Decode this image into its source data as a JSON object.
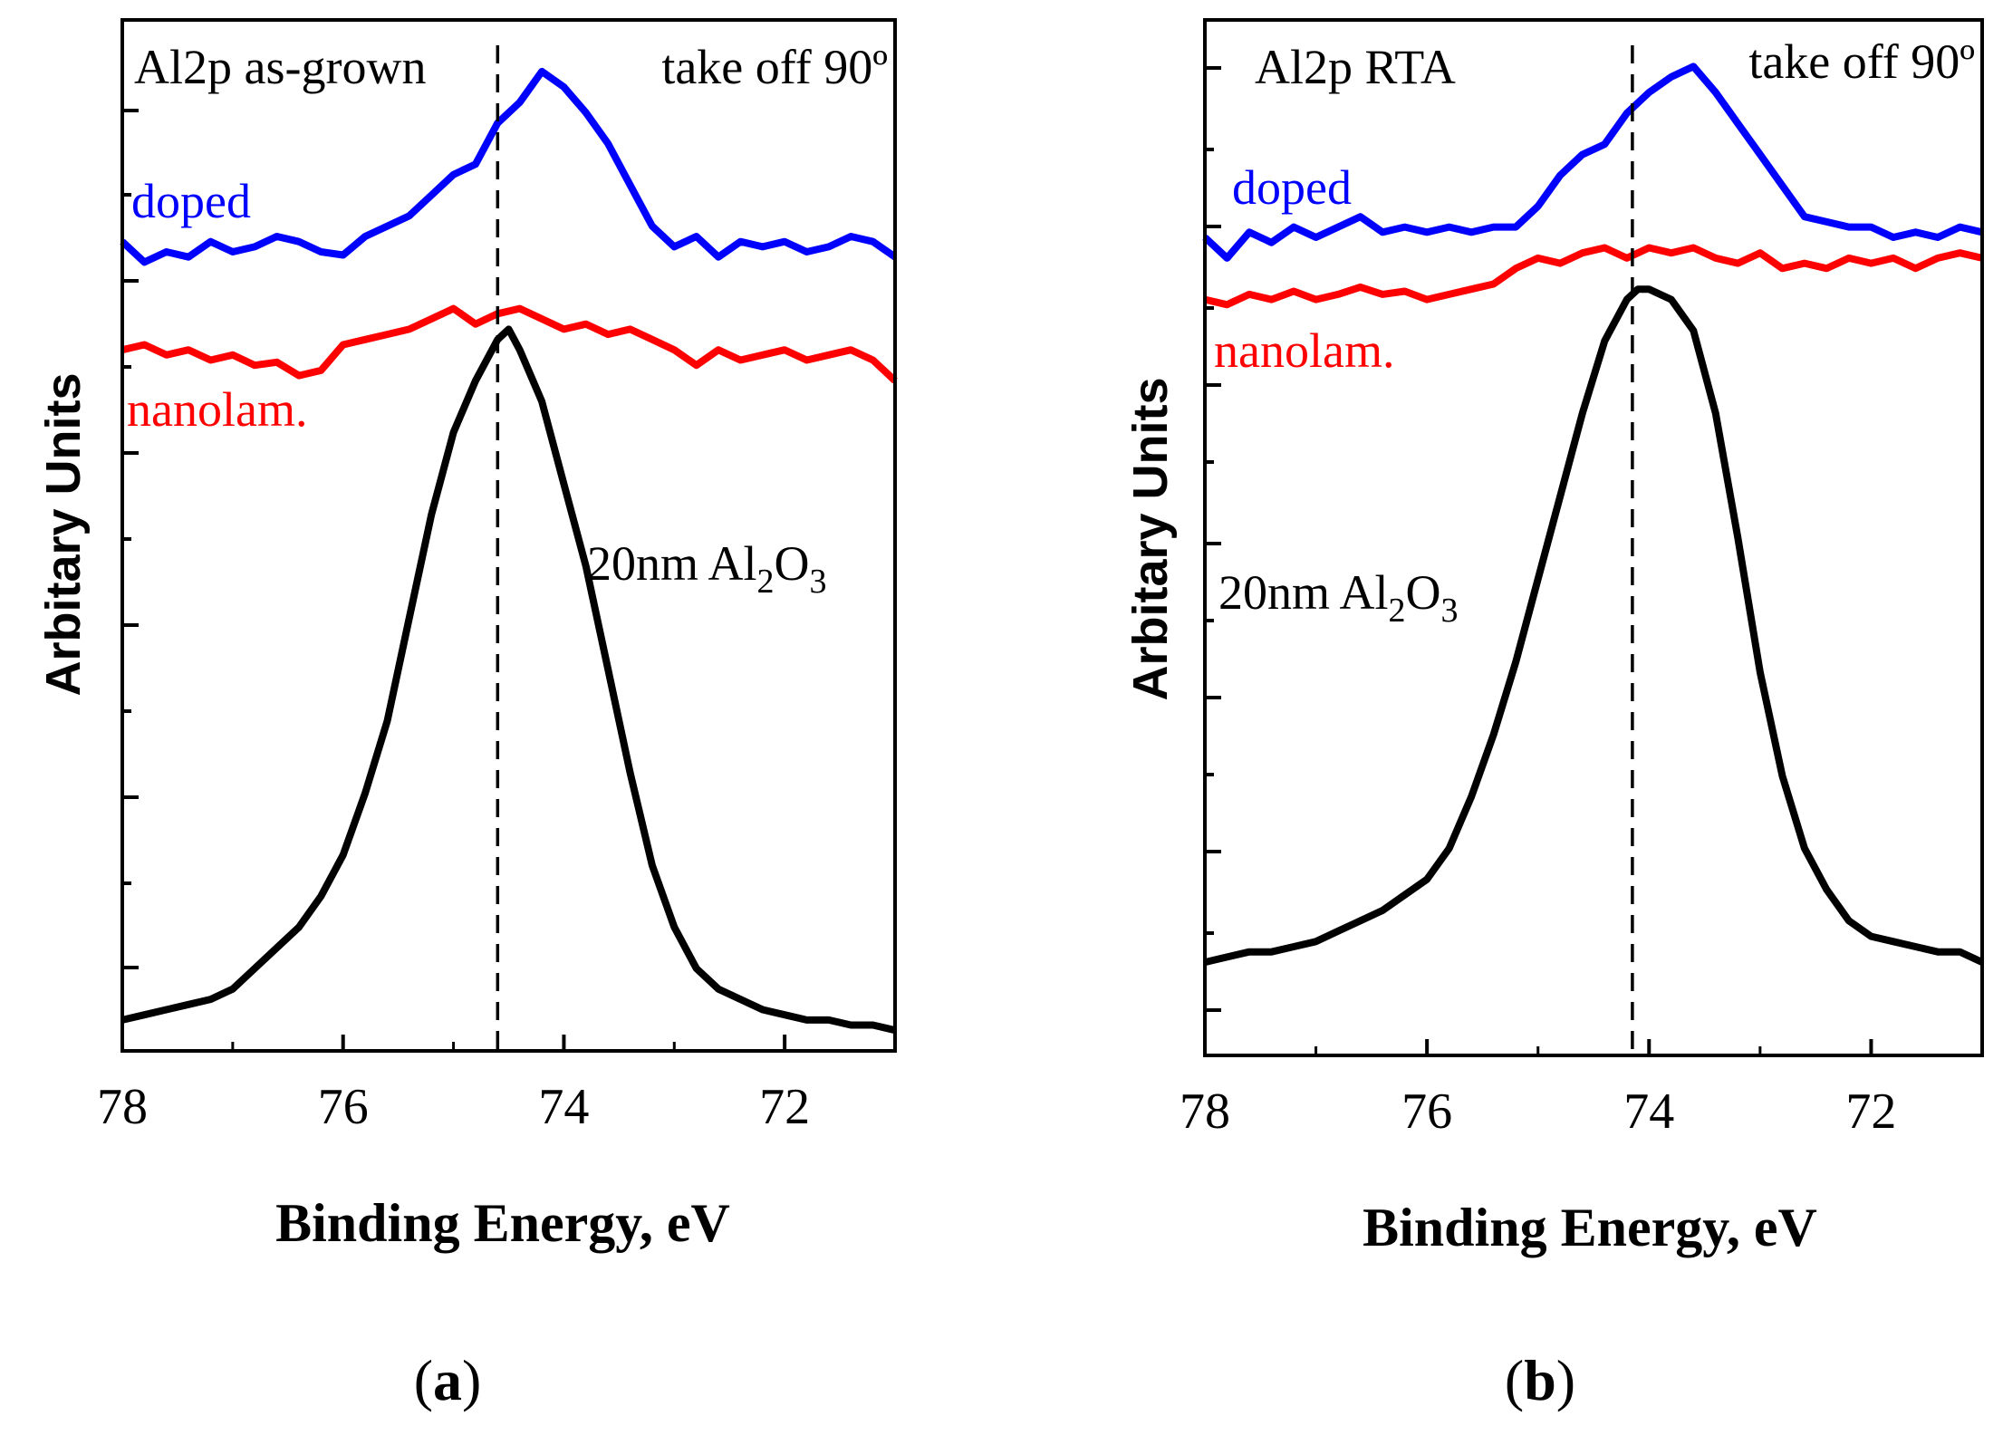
{
  "chart_data": [
    {
      "type": "line",
      "panel_label": {
        "open": "(",
        "letter": "a",
        "close": ")"
      },
      "xlabel": "Binding Energy, eV",
      "ylabel": "Arbitary Units",
      "xlim": [
        78,
        71
      ],
      "x_reversed": true,
      "xticks": [
        "78",
        "76",
        "74",
        "72"
      ],
      "ylim": [
        0,
        1
      ],
      "y_tick_labels": false,
      "reference_line_x": 74.6,
      "annotations": {
        "top_left": "Al2p as-grown",
        "top_right": "take off 90º",
        "doped_label": "doped",
        "nanolam_label": "nanolam.",
        "oxide_label": {
          "prefix": "20nm Al",
          "sub1": "2",
          "mid": "O",
          "sub2": "3"
        }
      },
      "series": [
        {
          "name": "doped",
          "color": "#0000ff",
          "x": [
            78.0,
            77.8,
            77.6,
            77.4,
            77.2,
            77.0,
            76.8,
            76.6,
            76.4,
            76.2,
            76.0,
            75.8,
            75.6,
            75.4,
            75.2,
            75.0,
            74.8,
            74.6,
            74.4,
            74.2,
            74.0,
            73.8,
            73.6,
            73.4,
            73.2,
            73.0,
            72.8,
            72.6,
            72.4,
            72.2,
            72.0,
            71.8,
            71.6,
            71.4,
            71.2,
            71.0
          ],
          "y": [
            0.785,
            0.765,
            0.775,
            0.77,
            0.785,
            0.775,
            0.78,
            0.79,
            0.785,
            0.775,
            0.772,
            0.79,
            0.8,
            0.81,
            0.83,
            0.85,
            0.86,
            0.9,
            0.92,
            0.95,
            0.935,
            0.91,
            0.88,
            0.84,
            0.8,
            0.78,
            0.79,
            0.77,
            0.785,
            0.78,
            0.785,
            0.775,
            0.78,
            0.79,
            0.785,
            0.77
          ]
        },
        {
          "name": "nanolam.",
          "color": "#ff0000",
          "x": [
            78.0,
            77.8,
            77.6,
            77.4,
            77.2,
            77.0,
            76.8,
            76.6,
            76.4,
            76.2,
            76.0,
            75.8,
            75.6,
            75.4,
            75.2,
            75.0,
            74.8,
            74.6,
            74.4,
            74.2,
            74.0,
            73.8,
            73.6,
            73.4,
            73.2,
            73.0,
            72.8,
            72.6,
            72.4,
            72.2,
            72.0,
            71.8,
            71.6,
            71.4,
            71.2,
            71.0
          ],
          "y": [
            0.68,
            0.685,
            0.675,
            0.68,
            0.67,
            0.675,
            0.665,
            0.668,
            0.655,
            0.66,
            0.685,
            0.69,
            0.695,
            0.7,
            0.71,
            0.72,
            0.705,
            0.715,
            0.72,
            0.71,
            0.7,
            0.705,
            0.695,
            0.7,
            0.69,
            0.68,
            0.665,
            0.68,
            0.67,
            0.675,
            0.68,
            0.67,
            0.675,
            0.68,
            0.67,
            0.65
          ]
        },
        {
          "name": "20nm Al2O3",
          "color": "#000000",
          "x": [
            78.0,
            77.8,
            77.6,
            77.4,
            77.2,
            77.0,
            76.8,
            76.6,
            76.4,
            76.2,
            76.0,
            75.8,
            75.6,
            75.4,
            75.2,
            75.0,
            74.8,
            74.6,
            74.5,
            74.4,
            74.2,
            74.0,
            73.8,
            73.6,
            73.4,
            73.2,
            73.0,
            72.8,
            72.6,
            72.4,
            72.2,
            72.0,
            71.8,
            71.6,
            71.4,
            71.2,
            71.0
          ],
          "y": [
            0.03,
            0.035,
            0.04,
            0.045,
            0.05,
            0.06,
            0.08,
            0.1,
            0.12,
            0.15,
            0.19,
            0.25,
            0.32,
            0.42,
            0.52,
            0.6,
            0.65,
            0.69,
            0.7,
            0.68,
            0.63,
            0.55,
            0.47,
            0.37,
            0.27,
            0.18,
            0.12,
            0.08,
            0.06,
            0.05,
            0.04,
            0.035,
            0.03,
            0.03,
            0.025,
            0.025,
            0.02
          ]
        }
      ]
    },
    {
      "type": "line",
      "panel_label": {
        "open": "(",
        "letter": "b",
        "close": ")"
      },
      "xlabel": "Binding Energy, eV",
      "ylabel": "Arbitary Units",
      "xlim": [
        78,
        71
      ],
      "x_reversed": true,
      "xticks": [
        "78",
        "76",
        "74",
        "72"
      ],
      "ylim": [
        0,
        1
      ],
      "y_tick_labels": false,
      "reference_line_x": 74.15,
      "annotations": {
        "top_left": "Al2p RTA",
        "top_right": "take off 90º",
        "doped_label": "doped",
        "nanolam_label": "nanolam.",
        "oxide_label": {
          "prefix": "20nm Al",
          "sub1": "2",
          "mid": "O",
          "sub2": "3"
        }
      },
      "series": [
        {
          "name": "doped",
          "color": "#0000ff",
          "x": [
            78.0,
            77.8,
            77.6,
            77.4,
            77.2,
            77.0,
            76.8,
            76.6,
            76.4,
            76.2,
            76.0,
            75.8,
            75.6,
            75.4,
            75.2,
            75.0,
            74.8,
            74.6,
            74.4,
            74.2,
            74.0,
            73.8,
            73.6,
            73.4,
            73.2,
            73.0,
            72.8,
            72.6,
            72.4,
            72.2,
            72.0,
            71.8,
            71.6,
            71.4,
            71.2,
            71.0
          ],
          "y": [
            0.79,
            0.77,
            0.795,
            0.785,
            0.8,
            0.79,
            0.8,
            0.81,
            0.795,
            0.8,
            0.795,
            0.8,
            0.795,
            0.8,
            0.8,
            0.82,
            0.85,
            0.87,
            0.88,
            0.91,
            0.93,
            0.945,
            0.955,
            0.93,
            0.9,
            0.87,
            0.84,
            0.81,
            0.805,
            0.8,
            0.8,
            0.79,
            0.795,
            0.79,
            0.8,
            0.795
          ]
        },
        {
          "name": "nanolam.",
          "color": "#ff0000",
          "x": [
            78.0,
            77.8,
            77.6,
            77.4,
            77.2,
            77.0,
            76.8,
            76.6,
            76.4,
            76.2,
            76.0,
            75.8,
            75.6,
            75.4,
            75.2,
            75.0,
            74.8,
            74.6,
            74.4,
            74.2,
            74.0,
            73.8,
            73.6,
            73.4,
            73.2,
            73.0,
            72.8,
            72.6,
            72.4,
            72.2,
            72.0,
            71.8,
            71.6,
            71.4,
            71.2,
            71.0
          ],
          "y": [
            0.73,
            0.725,
            0.735,
            0.73,
            0.738,
            0.73,
            0.735,
            0.742,
            0.735,
            0.738,
            0.73,
            0.735,
            0.74,
            0.745,
            0.76,
            0.77,
            0.765,
            0.775,
            0.78,
            0.77,
            0.78,
            0.775,
            0.78,
            0.77,
            0.765,
            0.775,
            0.76,
            0.765,
            0.76,
            0.77,
            0.765,
            0.77,
            0.76,
            0.77,
            0.775,
            0.77
          ]
        },
        {
          "name": "20nm Al2O3",
          "color": "#000000",
          "x": [
            78.0,
            77.8,
            77.6,
            77.4,
            77.2,
            77.0,
            76.8,
            76.6,
            76.4,
            76.2,
            76.0,
            75.8,
            75.6,
            75.4,
            75.2,
            75.0,
            74.8,
            74.6,
            74.4,
            74.2,
            74.1,
            74.0,
            73.8,
            73.6,
            73.4,
            73.2,
            73.0,
            72.8,
            72.6,
            72.4,
            72.2,
            72.0,
            71.8,
            71.6,
            71.4,
            71.2,
            71.0
          ],
          "y": [
            0.09,
            0.095,
            0.1,
            0.1,
            0.105,
            0.11,
            0.12,
            0.13,
            0.14,
            0.155,
            0.17,
            0.2,
            0.25,
            0.31,
            0.38,
            0.46,
            0.54,
            0.62,
            0.69,
            0.73,
            0.74,
            0.74,
            0.73,
            0.7,
            0.62,
            0.5,
            0.37,
            0.27,
            0.2,
            0.16,
            0.13,
            0.115,
            0.11,
            0.105,
            0.1,
            0.1,
            0.09
          ]
        }
      ]
    }
  ]
}
